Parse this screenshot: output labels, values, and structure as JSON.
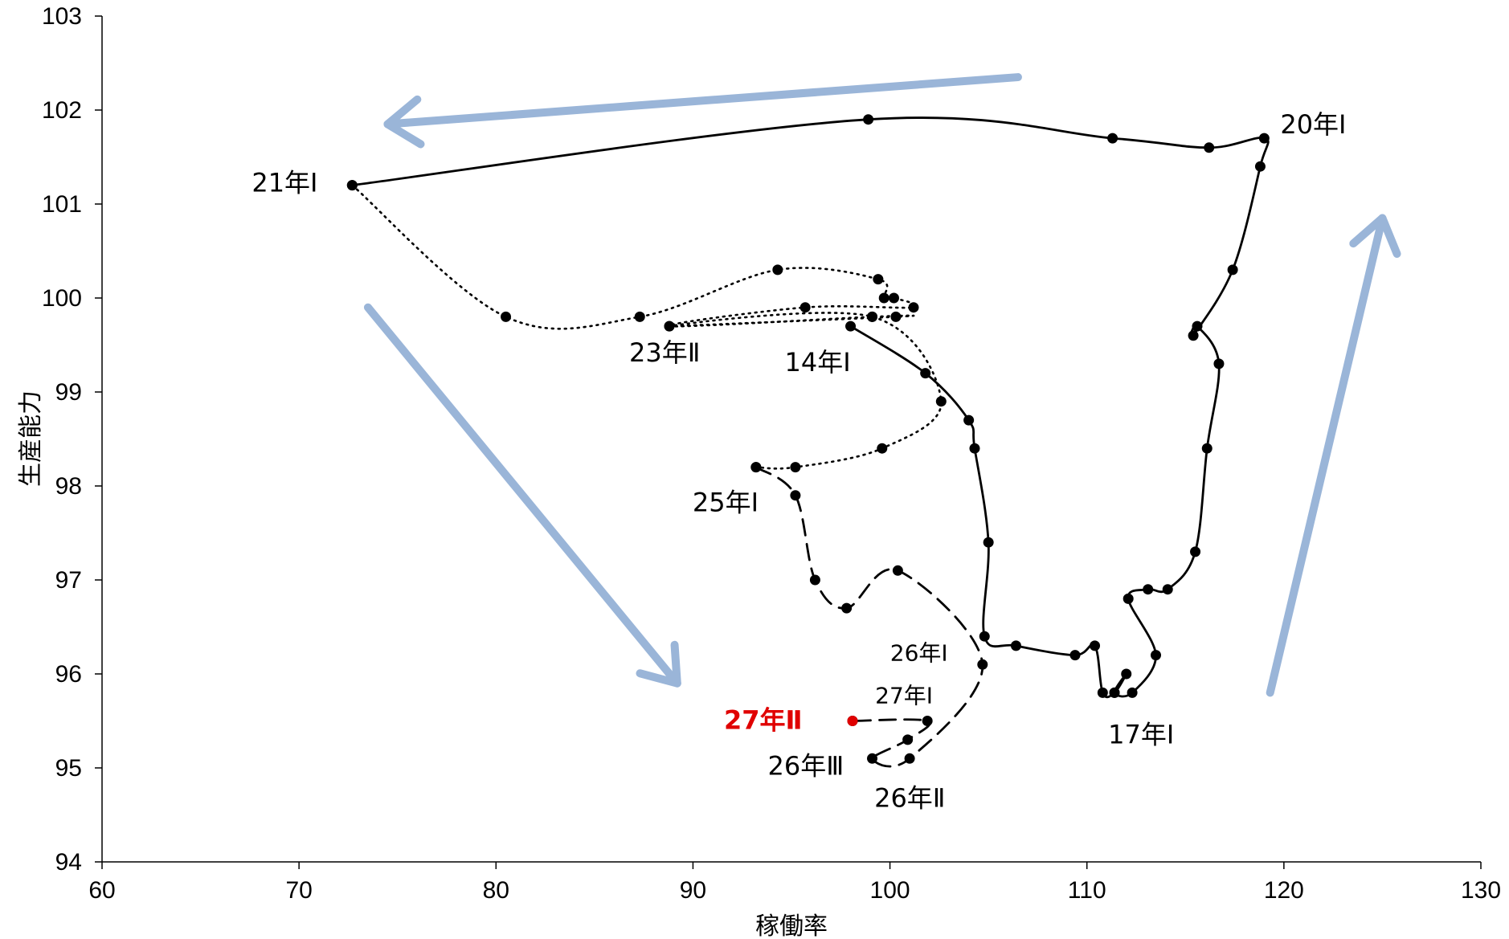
{
  "chart_data": {
    "type": "line",
    "title": "",
    "xlabel": "稼働率",
    "ylabel": "生産能力",
    "xlim": [
      60,
      130
    ],
    "ylim": [
      94,
      103
    ],
    "xticks": [
      "60",
      "70",
      "80",
      "90",
      "100",
      "110",
      "120",
      "130"
    ],
    "yticks": [
      "94",
      "95",
      "96",
      "97",
      "98",
      "99",
      "100",
      "101",
      "102",
      "103"
    ],
    "grid": false,
    "colors": {
      "line": "#000000",
      "highlight": "#e00000",
      "arrow": "#9ab5d8"
    },
    "segments": [
      {
        "style": "solid",
        "points": [
          [
            98.0,
            99.7
          ],
          [
            101.8,
            99.2
          ],
          [
            104.0,
            98.7
          ],
          [
            104.3,
            98.4
          ],
          [
            105.0,
            97.4
          ],
          [
            104.8,
            96.4
          ],
          [
            106.4,
            96.3
          ],
          [
            109.4,
            96.2
          ],
          [
            110.4,
            96.3
          ],
          [
            110.8,
            95.8
          ],
          [
            111.4,
            95.8
          ],
          [
            112.0,
            96.0
          ],
          [
            111.4,
            95.8
          ],
          [
            112.3,
            95.8
          ],
          [
            113.5,
            96.2
          ],
          [
            112.1,
            96.8
          ],
          [
            113.1,
            96.9
          ],
          [
            114.1,
            96.9
          ],
          [
            115.5,
            97.3
          ],
          [
            116.1,
            98.4
          ],
          [
            116.7,
            99.3
          ],
          [
            115.6,
            99.7
          ],
          [
            115.4,
            99.6
          ],
          [
            117.4,
            100.3
          ],
          [
            118.8,
            101.4
          ],
          [
            119.0,
            101.7
          ],
          [
            116.2,
            101.6
          ],
          [
            111.3,
            101.7
          ],
          [
            98.9,
            101.9
          ],
          [
            72.7,
            101.2
          ]
        ]
      },
      {
        "style": "dotted",
        "points": [
          [
            72.7,
            101.2
          ],
          [
            80.5,
            99.8
          ],
          [
            87.3,
            99.8
          ],
          [
            94.3,
            100.3
          ],
          [
            99.4,
            100.2
          ],
          [
            99.7,
            100.0
          ],
          [
            100.2,
            100.0
          ],
          [
            101.2,
            99.9
          ],
          [
            95.7,
            99.9
          ],
          [
            88.8,
            99.7
          ],
          [
            99.1,
            99.8
          ],
          [
            100.3,
            99.8
          ],
          [
            88.8,
            99.7
          ],
          [
            99.1,
            99.8
          ],
          [
            102.6,
            98.9
          ],
          [
            99.6,
            98.4
          ],
          [
            95.2,
            98.2
          ],
          [
            93.2,
            98.2
          ]
        ]
      },
      {
        "style": "dashed",
        "points": [
          [
            93.2,
            98.2
          ],
          [
            95.2,
            97.9
          ],
          [
            96.2,
            97.0
          ],
          [
            97.8,
            96.7
          ],
          [
            100.4,
            97.1
          ],
          [
            104.7,
            96.1
          ],
          [
            101.0,
            95.1
          ],
          [
            99.1,
            95.1
          ],
          [
            100.9,
            95.3
          ],
          [
            101.9,
            95.5
          ],
          [
            98.1,
            95.5
          ]
        ]
      }
    ],
    "highlight_point": [
      98.1,
      95.5
    ],
    "annotations": [
      {
        "text": "21年Ⅰ",
        "x": 72.7,
        "y": 101.2
      },
      {
        "text": "20年Ⅰ",
        "x": 119.0,
        "y": 101.7
      },
      {
        "text": "23年Ⅱ",
        "x": 88.8,
        "y": 99.7
      },
      {
        "text": "14年Ⅰ",
        "x": 98.0,
        "y": 99.7
      },
      {
        "text": "25年Ⅰ",
        "x": 95.2,
        "y": 97.9
      },
      {
        "text": "26年Ⅰ",
        "x": 104.7,
        "y": 96.1
      },
      {
        "text": "27年Ⅰ",
        "x": 101.9,
        "y": 95.5
      },
      {
        "text": "27年Ⅱ",
        "x": 98.1,
        "y": 95.5
      },
      {
        "text": "26年Ⅲ",
        "x": 99.1,
        "y": 95.1
      },
      {
        "text": "26年Ⅱ",
        "x": 101.0,
        "y": 95.1
      },
      {
        "text": "17年Ⅰ",
        "x": 112.3,
        "y": 95.8
      }
    ],
    "arrows": [
      {
        "from": [
          106.5,
          102.35
        ],
        "to": [
          74.5,
          101.85
        ]
      },
      {
        "from": [
          73.5,
          99.9
        ],
        "to": [
          89.2,
          95.9
        ]
      },
      {
        "from": [
          119.3,
          95.8
        ],
        "to": [
          125.0,
          100.85
        ]
      }
    ]
  }
}
